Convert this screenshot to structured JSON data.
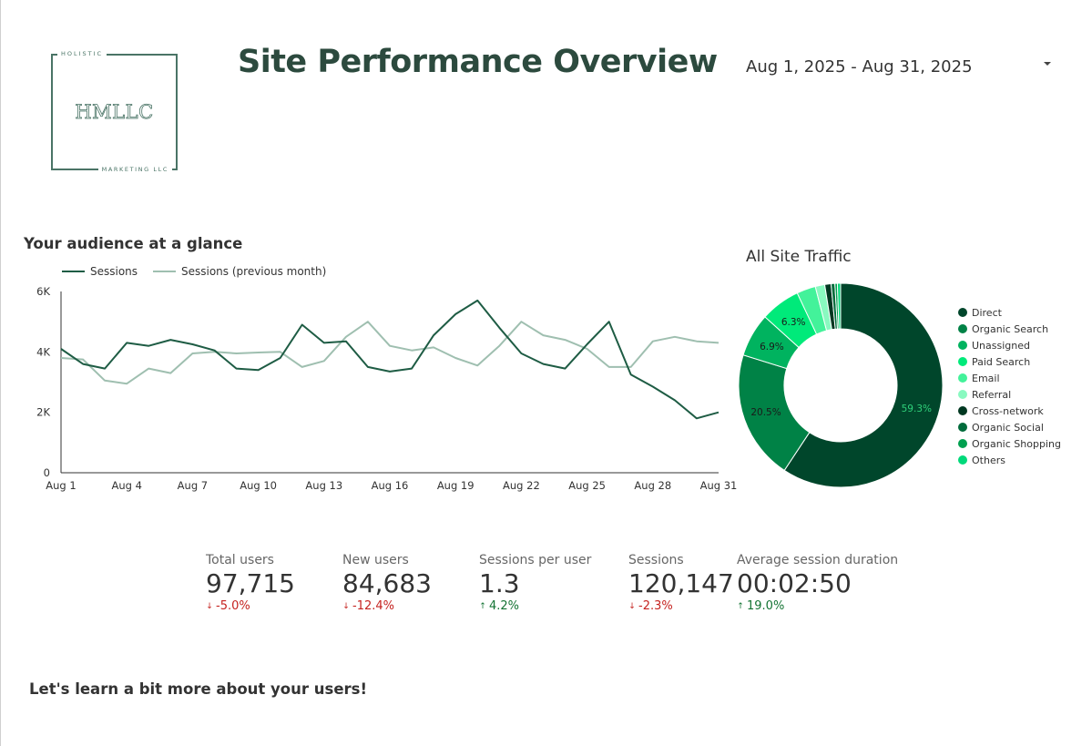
{
  "header": {
    "title": "Site Performance Overview",
    "date_range": "Aug 1, 2025 - Aug 31, 2025"
  },
  "logo": {
    "top_text": "HOLISTIC",
    "mark": "HMLLC",
    "bottom_text": "MARKETING LLC"
  },
  "sections": {
    "audience": "Your audience at a glance",
    "users": "Let's learn a bit more about your users!"
  },
  "colors": {
    "sessions": "#1e5c44",
    "previous": "#9fbfb0",
    "title": "#2c4a3e",
    "down": "#c5221f",
    "up": "#137333"
  },
  "chart_data": [
    {
      "type": "line",
      "title": "",
      "x": [
        "Aug 1",
        "Aug 2",
        "Aug 3",
        "Aug 4",
        "Aug 5",
        "Aug 6",
        "Aug 7",
        "Aug 8",
        "Aug 9",
        "Aug 10",
        "Aug 11",
        "Aug 12",
        "Aug 13",
        "Aug 14",
        "Aug 15",
        "Aug 16",
        "Aug 17",
        "Aug 18",
        "Aug 19",
        "Aug 20",
        "Aug 21",
        "Aug 22",
        "Aug 23",
        "Aug 24",
        "Aug 25",
        "Aug 26",
        "Aug 27",
        "Aug 28",
        "Aug 29",
        "Aug 30",
        "Aug 31"
      ],
      "x_ticks": [
        "Aug 1",
        "Aug 4",
        "Aug 7",
        "Aug 10",
        "Aug 13",
        "Aug 16",
        "Aug 19",
        "Aug 22",
        "Aug 25",
        "Aug 28",
        "Aug 31"
      ],
      "y_ticks": [
        "0",
        "2K",
        "4K",
        "6K"
      ],
      "ylim": [
        0,
        6000
      ],
      "grid": false,
      "legend": "top-left",
      "series": [
        {
          "name": "Sessions",
          "values": [
            4100,
            3600,
            3450,
            4300,
            4200,
            4400,
            4250,
            4050,
            3450,
            3400,
            3800,
            4900,
            4300,
            4350,
            3500,
            3350,
            3450,
            4550,
            5250,
            5700,
            4800,
            3950,
            3600,
            3450,
            4250,
            5000,
            3250,
            2850,
            2400,
            1800,
            2000
          ]
        },
        {
          "name": "Sessions (previous month)",
          "values": [
            3800,
            3750,
            3050,
            2950,
            3450,
            3300,
            3950,
            4000,
            3950,
            3980,
            4000,
            3500,
            3700,
            4500,
            5000,
            4200,
            4050,
            4150,
            3800,
            3550,
            4200,
            5000,
            4550,
            4400,
            4100,
            3500,
            3500,
            4350,
            4500,
            4350,
            4300
          ]
        }
      ]
    },
    {
      "type": "pie",
      "title": "All Site Traffic",
      "legend": "right",
      "categories": [
        "Direct",
        "Organic Search",
        "Unassigned",
        "Paid Search",
        "Email",
        "Referral",
        "Cross-network",
        "Organic Social",
        "Organic Shopping",
        "Others"
      ],
      "values": [
        59.3,
        20.5,
        6.9,
        6.3,
        3.0,
        1.5,
        1.0,
        0.6,
        0.4,
        0.5
      ],
      "labels": [
        "59.3%",
        "20.5%",
        "6.9%",
        "6.3%",
        "",
        "",
        "",
        "",
        "",
        ""
      ],
      "colors": [
        "#00462b",
        "#008246",
        "#00b35f",
        "#00ea7a",
        "#43f29a",
        "#89f9c0",
        "#003821",
        "#006b3b",
        "#00a04f",
        "#00d97a"
      ]
    }
  ],
  "kpis": [
    {
      "label": "Total users",
      "value": "97,715",
      "delta": "-5.0%",
      "direction": "down"
    },
    {
      "label": "New users",
      "value": "84,683",
      "delta": "-12.4%",
      "direction": "down"
    },
    {
      "label": "Sessions per user",
      "value": "1.3",
      "delta": "4.2%",
      "direction": "up"
    },
    {
      "label": "Sessions",
      "value": "120,147",
      "delta": "-2.3%",
      "direction": "down"
    },
    {
      "label": "Average session duration",
      "value": "00:02:50",
      "delta": "19.0%",
      "direction": "up"
    }
  ]
}
